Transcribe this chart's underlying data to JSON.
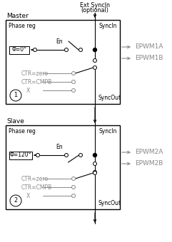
{
  "bg_color": "#ffffff",
  "border_color": "#000000",
  "gray_color": "#888888",
  "title_master": "Master",
  "title_slave": "Slave",
  "label_phase_reg": "Phase reg",
  "label_syncin": "SyncIn",
  "label_syncout": "SyncOut",
  "label_en": "En",
  "label_phi0": "Φ=0°",
  "label_phi120": "Φ=120°",
  "label_ctr_zero": "CTR=zero",
  "label_ctr_cmpb": "CTR=CMPB",
  "label_x": "X",
  "label_epwm1a": "EPWM1A",
  "label_epwm1b": "EPWM1B",
  "label_epwm2a": "EPWM2A",
  "label_epwm2b": "EPWM2B",
  "label_ext_syncin": "Ext SyncIn",
  "label_optional": "(optional)",
  "label_1": "1",
  "label_2": "2",
  "fig_width": 2.41,
  "fig_height": 3.4
}
